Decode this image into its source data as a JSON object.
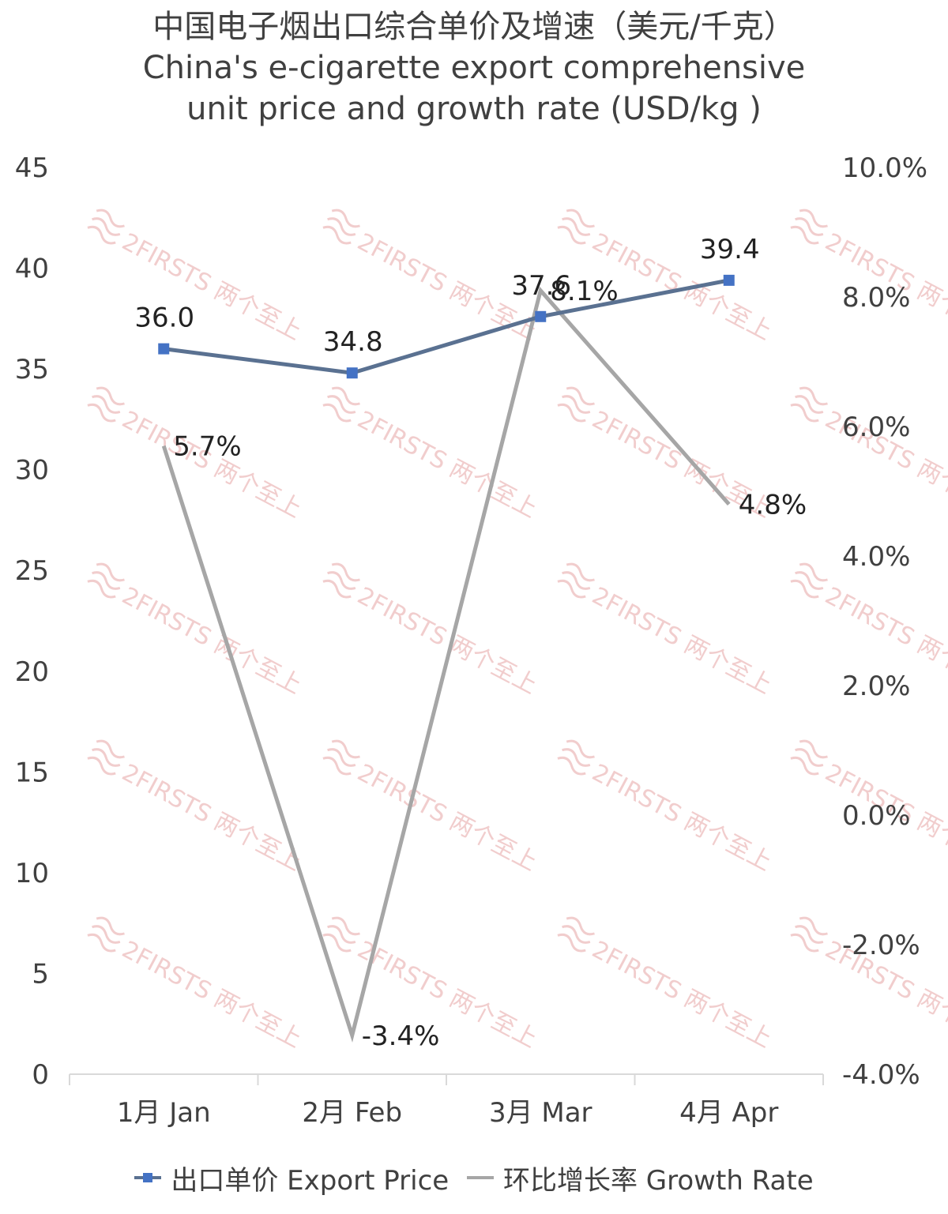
{
  "chart_data": {
    "type": "line",
    "title": "中国电子烟出口综合单价及增速（美元/千克）",
    "subtitle_lines": [
      "China's e-cigarette export comprehensive",
      "unit price and growth rate (USD/kg )"
    ],
    "categories": [
      "1月 Jan",
      "2月 Feb",
      "3月 Mar",
      "4月 Apr"
    ],
    "series": [
      {
        "name": "出口单价 Export Price",
        "axis": "left",
        "values": [
          36.0,
          34.8,
          37.6,
          39.4
        ],
        "labels": [
          "36.0",
          "34.8",
          "37.6",
          "39.4"
        ],
        "color": "#5a7191",
        "marker_color": "#4472c4"
      },
      {
        "name": "环比增长率 Growth Rate",
        "axis": "right",
        "values": [
          5.7,
          -3.4,
          8.1,
          4.8
        ],
        "labels": [
          "5.7%",
          "-3.4%",
          "8.1%",
          "4.8%"
        ],
        "color": "#a6a6a6"
      }
    ],
    "y_left": {
      "min": 0,
      "max": 45,
      "ticks": [
        "0",
        "5",
        "10",
        "15",
        "20",
        "25",
        "30",
        "35",
        "40",
        "45"
      ]
    },
    "y_right": {
      "min": -4,
      "max": 10,
      "ticks": [
        "-4.0%",
        "-2.0%",
        "0.0%",
        "2.0%",
        "4.0%",
        "6.0%",
        "8.0%",
        "10.0%"
      ]
    },
    "grid": false,
    "legend_position": "bottom",
    "watermark": "2FIRSTS 两个至上"
  }
}
